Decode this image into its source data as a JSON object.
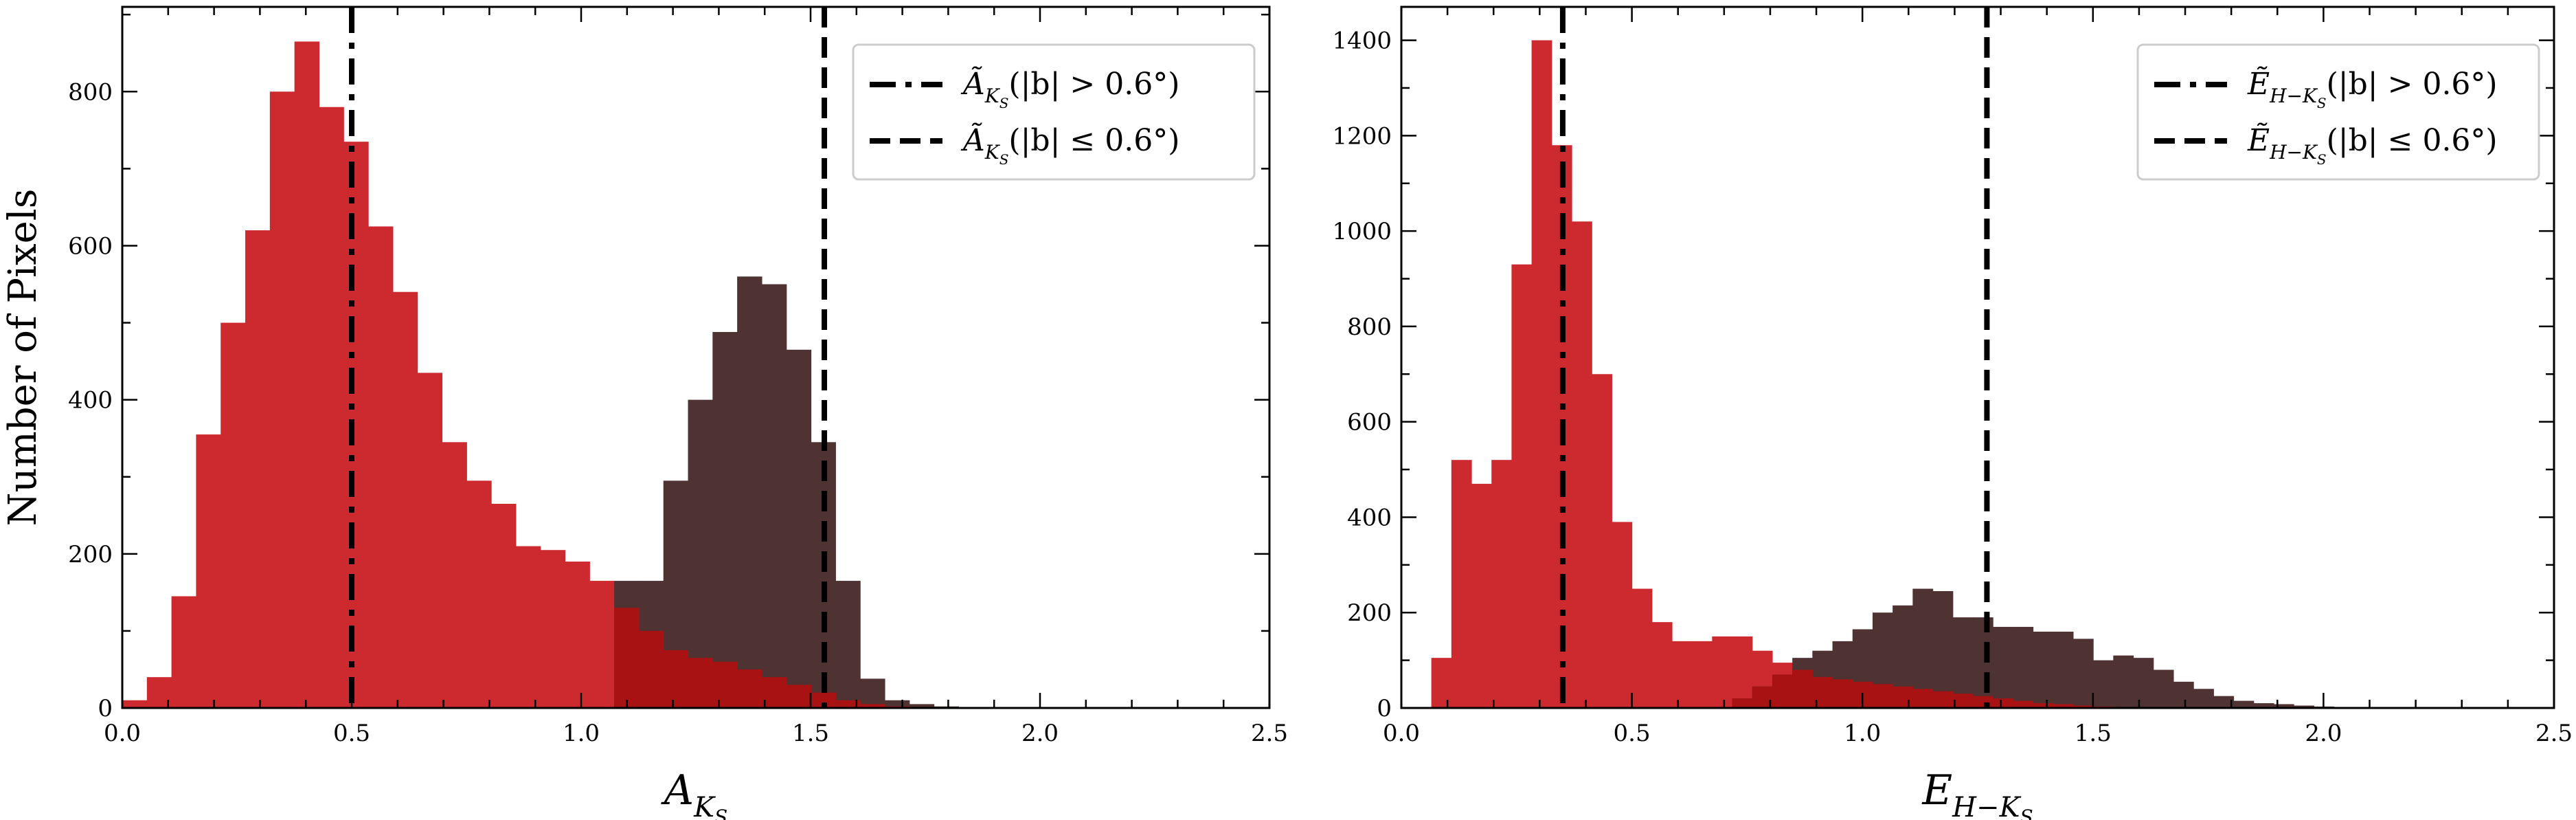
{
  "chart_data": [
    {
      "type": "histogram",
      "ylabel": "Number of Pixels",
      "xlabel": {
        "main": "A",
        "sub": "K",
        "subsub": "S"
      },
      "xlim": [
        0.0,
        2.5
      ],
      "ylim": [
        0,
        910
      ],
      "xticks": [
        "0.0",
        "0.5",
        "1.0",
        "1.5",
        "2.0",
        "2.5"
      ],
      "xtick_values": [
        0.0,
        0.5,
        1.0,
        1.5,
        2.0,
        2.5
      ],
      "yticks": [
        "0",
        "200",
        "400",
        "600",
        "800"
      ],
      "ytick_values": [
        0,
        200,
        400,
        600,
        800
      ],
      "bin_width": 0.0536,
      "series": [
        {
          "color": "#cc2a2e",
          "bin_start": 0.0,
          "values": [
            10,
            40,
            145,
            355,
            500,
            620,
            800,
            865,
            780,
            735,
            625,
            540,
            435,
            345,
            295,
            265,
            210,
            205,
            190,
            165,
            130,
            100,
            75,
            65,
            60,
            50,
            40,
            30,
            20,
            10,
            5,
            2,
            0,
            0,
            0
          ]
        },
        {
          "color": "#4f3232",
          "bin_start": 0.0,
          "values": [
            0,
            0,
            0,
            0,
            0,
            0,
            0,
            0,
            0,
            0,
            0,
            0,
            0,
            0,
            0,
            0,
            0,
            0,
            0,
            0,
            165,
            165,
            295,
            400,
            488,
            560,
            550,
            465,
            345,
            165,
            38,
            10,
            5,
            2,
            0
          ]
        }
      ],
      "overlap_color": "#a81212",
      "vlines": [
        {
          "x": 0.5,
          "style": "dashdot"
        },
        {
          "x": 1.53,
          "style": "dashed"
        }
      ],
      "legend": {
        "position": "top-right",
        "entries": [
          {
            "style": "dashdot",
            "sym": "Ã",
            "sub": "K",
            "subsub": "S",
            "text": "(|b| > 0.6°)"
          },
          {
            "style": "dashed",
            "sym": "Ã",
            "sub": "K",
            "subsub": "S",
            "text": "(|b| ≤ 0.6°)"
          }
        ]
      }
    },
    {
      "type": "histogram",
      "ylabel": "",
      "xlabel": {
        "main": "E",
        "sub": "H−K",
        "subsub": "S"
      },
      "xlim": [
        0.0,
        2.5
      ],
      "ylim": [
        0,
        1470
      ],
      "xticks": [
        "0.0",
        "0.5",
        "1.0",
        "1.5",
        "2.0",
        "2.5"
      ],
      "xtick_values": [
        0.0,
        0.5,
        1.0,
        1.5,
        2.0,
        2.5
      ],
      "yticks": [
        "0",
        "200",
        "400",
        "600",
        "800",
        "1000",
        "1200",
        "1400"
      ],
      "ytick_values": [
        0,
        200,
        400,
        600,
        800,
        1000,
        1200,
        1400
      ],
      "bin_width": 0.0435,
      "series": [
        {
          "color": "#cc2a2e",
          "bin_start": 0.065,
          "values": [
            105,
            520,
            470,
            520,
            930,
            1400,
            1180,
            1020,
            700,
            390,
            250,
            180,
            140,
            140,
            150,
            150,
            120,
            95,
            80,
            65,
            60,
            55,
            50,
            45,
            40,
            35,
            30,
            25,
            20,
            15,
            10,
            8,
            5,
            3,
            2,
            1,
            0,
            0,
            0,
            0,
            0,
            0,
            0,
            0,
            0,
            0,
            0
          ]
        },
        {
          "color": "#4f3232",
          "bin_start": 0.065,
          "values": [
            0,
            0,
            0,
            0,
            0,
            0,
            0,
            0,
            0,
            0,
            0,
            0,
            0,
            0,
            0,
            20,
            45,
            70,
            105,
            120,
            140,
            165,
            200,
            215,
            250,
            245,
            190,
            190,
            170,
            170,
            160,
            160,
            145,
            100,
            110,
            105,
            80,
            55,
            40,
            25,
            15,
            10,
            8,
            5,
            3,
            1,
            0
          ]
        }
      ],
      "overlap_color": "#a81212",
      "vlines": [
        {
          "x": 0.35,
          "style": "dashdot"
        },
        {
          "x": 1.27,
          "style": "dashed"
        }
      ],
      "legend": {
        "position": "top-right",
        "entries": [
          {
            "style": "dashdot",
            "sym": "Ẽ",
            "sub": "H−K",
            "subsub": "S",
            "text": "(|b| > 0.6°)"
          },
          {
            "style": "dashed",
            "sym": "Ẽ",
            "sub": "H−K",
            "subsub": "S",
            "text": "(|b| ≤ 0.6°)"
          }
        ]
      }
    }
  ]
}
